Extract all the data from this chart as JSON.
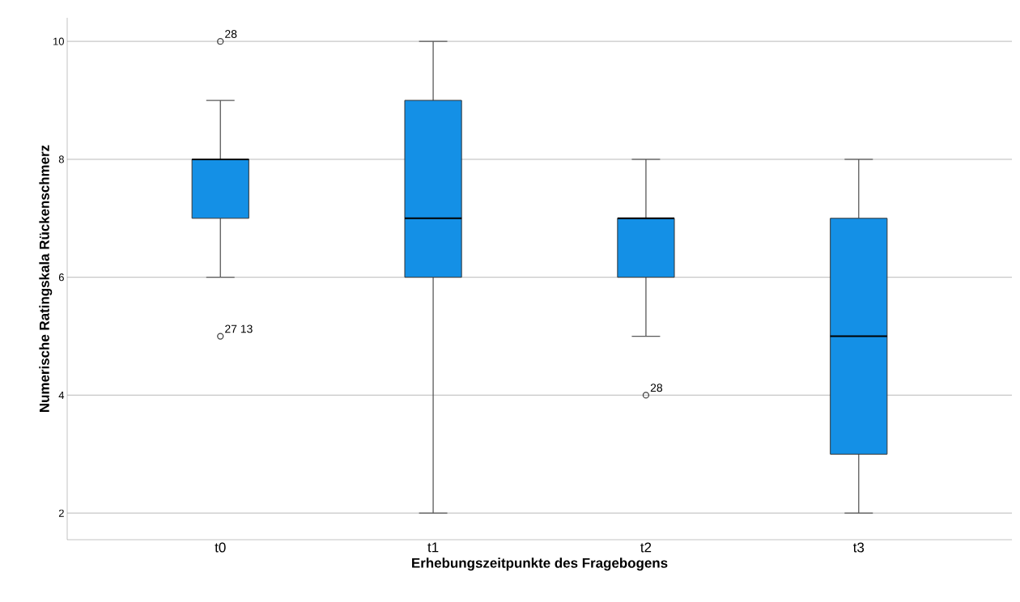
{
  "chart_data": {
    "type": "box",
    "xlabel": "Erhebungszeitpunkte des Fragebogens",
    "ylabel": "Numerische Ratingskala Rückenschmerz",
    "categories": [
      "t0",
      "t1",
      "t2",
      "t3"
    ],
    "color": "#1490e6",
    "boxes": [
      {
        "low": 6,
        "q1": 7,
        "median": 8,
        "q3": 8,
        "high": 9,
        "outliers": [
          10,
          5
        ]
      },
      {
        "low": 2,
        "q1": 6,
        "median": 7,
        "q3": 9,
        "high": 10
      },
      {
        "low": 5,
        "q1": 6,
        "median": 7,
        "q3": 7,
        "high": 8,
        "outliers": [
          4
        ]
      },
      {
        "low": 2,
        "q1": 3,
        "median": 5,
        "q3": 7,
        "high": 8
      }
    ],
    "ylim": [
      1.55,
      10.4
    ],
    "yticks": [
      2,
      4,
      6,
      8,
      10
    ],
    "grid": "y",
    "annotations": [
      "28",
      "27 13",
      "28"
    ]
  }
}
